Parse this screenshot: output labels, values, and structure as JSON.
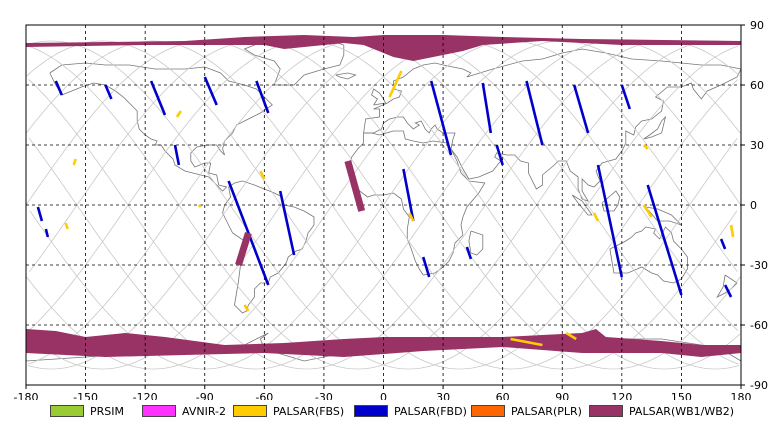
{
  "chart_data": {
    "type": "scatter",
    "title": "",
    "xlabel": "",
    "ylabel": "",
    "xlim": [
      -180,
      180
    ],
    "ylim": [
      -90,
      90
    ],
    "x_ticks": [
      "-180",
      "-150",
      "-120",
      "-90",
      "-60",
      "-30",
      "0",
      "30",
      "60",
      "90",
      "120",
      "150",
      "180"
    ],
    "y_ticks": [
      "90",
      "60",
      "30",
      "0",
      "-30",
      "-60",
      "-90"
    ],
    "grid": true,
    "legend_position": "bottom",
    "legend": [
      {
        "name": "PRSIM",
        "color": "#99cc33"
      },
      {
        "name": "AVNIR-2",
        "color": "#ff33ff"
      },
      {
        "name": "PALSAR(FBS)",
        "color": "#ffcc00"
      },
      {
        "name": "PALSAR(FBD)",
        "color": "#0000cc"
      },
      {
        "name": "PALSAR(PLR)",
        "color": "#ff6600"
      },
      {
        "name": "PALSAR(WB1/WB2)",
        "color": "#993366"
      }
    ],
    "swaths": [
      {
        "mode": "PALSAR(FBD)",
        "path": [
          [
            -165,
            62
          ],
          [
            -162,
            55
          ]
        ]
      },
      {
        "mode": "PALSAR(FBD)",
        "path": [
          [
            -140,
            60
          ],
          [
            -137,
            53
          ]
        ]
      },
      {
        "mode": "PALSAR(FBD)",
        "path": [
          [
            -117,
            62
          ],
          [
            -110,
            45
          ]
        ]
      },
      {
        "mode": "PALSAR(FBD)",
        "path": [
          [
            -90,
            64
          ],
          [
            -84,
            50
          ]
        ]
      },
      {
        "mode": "PALSAR(FBD)",
        "path": [
          [
            -64,
            62
          ],
          [
            -58,
            46
          ]
        ]
      },
      {
        "mode": "PALSAR(FBD)",
        "path": [
          [
            -105,
            30
          ],
          [
            -103,
            20
          ]
        ]
      },
      {
        "mode": "PALSAR(FBD)",
        "path": [
          [
            -78,
            12
          ],
          [
            -58,
            -40
          ]
        ]
      },
      {
        "mode": "PALSAR(FBD)",
        "path": [
          [
            -52,
            7
          ],
          [
            -45,
            -25
          ]
        ]
      },
      {
        "mode": "PALSAR(FBD)",
        "path": [
          [
            -174,
            -1
          ],
          [
            -172,
            -8
          ]
        ]
      },
      {
        "mode": "PALSAR(FBD)",
        "path": [
          [
            -170,
            -12
          ],
          [
            -169,
            -16
          ]
        ]
      },
      {
        "mode": "PALSAR(FBD)",
        "path": [
          [
            24,
            62
          ],
          [
            34,
            25
          ]
        ]
      },
      {
        "mode": "PALSAR(FBD)",
        "path": [
          [
            10,
            18
          ],
          [
            15,
            -8
          ]
        ]
      },
      {
        "mode": "PALSAR(FBD)",
        "path": [
          [
            20,
            -26
          ],
          [
            23,
            -36
          ]
        ]
      },
      {
        "mode": "PALSAR(FBD)",
        "path": [
          [
            42,
            -21
          ],
          [
            44,
            -27
          ]
        ]
      },
      {
        "mode": "PALSAR(FBD)",
        "path": [
          [
            50,
            61
          ],
          [
            54,
            36
          ]
        ]
      },
      {
        "mode": "PALSAR(FBD)",
        "path": [
          [
            57,
            30
          ],
          [
            60,
            20
          ]
        ]
      },
      {
        "mode": "PALSAR(FBD)",
        "path": [
          [
            72,
            62
          ],
          [
            80,
            30
          ]
        ]
      },
      {
        "mode": "PALSAR(FBD)",
        "path": [
          [
            96,
            60
          ],
          [
            103,
            36
          ]
        ]
      },
      {
        "mode": "PALSAR(FBD)",
        "path": [
          [
            120,
            60
          ],
          [
            124,
            48
          ]
        ]
      },
      {
        "mode": "PALSAR(FBD)",
        "path": [
          [
            108,
            20
          ],
          [
            120,
            -36
          ]
        ]
      },
      {
        "mode": "PALSAR(FBD)",
        "path": [
          [
            133,
            10
          ],
          [
            150,
            -45
          ]
        ]
      },
      {
        "mode": "PALSAR(FBD)",
        "path": [
          [
            172,
            -40
          ],
          [
            175,
            -46
          ]
        ]
      },
      {
        "mode": "PALSAR(FBD)",
        "path": [
          [
            170,
            -17
          ],
          [
            172,
            -22
          ]
        ]
      },
      {
        "mode": "PALSAR(FBS)",
        "path": [
          [
            3,
            54
          ],
          [
            9,
            67
          ]
        ]
      },
      {
        "mode": "PALSAR(FBS)",
        "path": [
          [
            -104,
            44
          ],
          [
            -102,
            47
          ]
        ]
      },
      {
        "mode": "PALSAR(FBS)",
        "path": [
          [
            -156,
            20
          ],
          [
            -155,
            23
          ]
        ]
      },
      {
        "mode": "PALSAR(FBS)",
        "path": [
          [
            -160,
            -9
          ],
          [
            -159,
            -12
          ]
        ]
      },
      {
        "mode": "PALSAR(FBS)",
        "path": [
          [
            -62,
            17
          ],
          [
            -60,
            13
          ]
        ]
      },
      {
        "mode": "PALSAR(FBS)",
        "path": [
          [
            -70,
            -50
          ],
          [
            -68,
            -53
          ]
        ]
      },
      {
        "mode": "PALSAR(FBS)",
        "path": [
          [
            -93,
            0
          ],
          [
            -92,
            -1
          ]
        ]
      },
      {
        "mode": "PALSAR(FBS)",
        "path": [
          [
            131,
            30
          ],
          [
            133,
            28
          ]
        ]
      },
      {
        "mode": "PALSAR(FBS)",
        "path": [
          [
            106,
            -4
          ],
          [
            108,
            -8
          ]
        ]
      },
      {
        "mode": "PALSAR(FBS)",
        "path": [
          [
            131,
            0
          ],
          [
            135,
            -6
          ]
        ]
      },
      {
        "mode": "PALSAR(FBS)",
        "path": [
          [
            175,
            -10
          ],
          [
            176,
            -16
          ]
        ]
      },
      {
        "mode": "PALSAR(FBS)",
        "path": [
          [
            64,
            -67
          ],
          [
            80,
            -70
          ]
        ]
      },
      {
        "mode": "PALSAR(FBS)",
        "path": [
          [
            92,
            -64
          ],
          [
            97,
            -67
          ]
        ]
      },
      {
        "mode": "PALSAR(FBS)",
        "path": [
          [
            13,
            -4
          ],
          [
            15,
            -8
          ]
        ]
      },
      {
        "mode": "PALSAR(WB1/WB2)",
        "path": [
          [
            -18,
            22
          ],
          [
            -11,
            -3
          ]
        ]
      },
      {
        "mode": "PALSAR(WB1/WB2)",
        "path": [
          [
            -68,
            -14
          ],
          [
            -73,
            -30
          ]
        ]
      }
    ]
  }
}
